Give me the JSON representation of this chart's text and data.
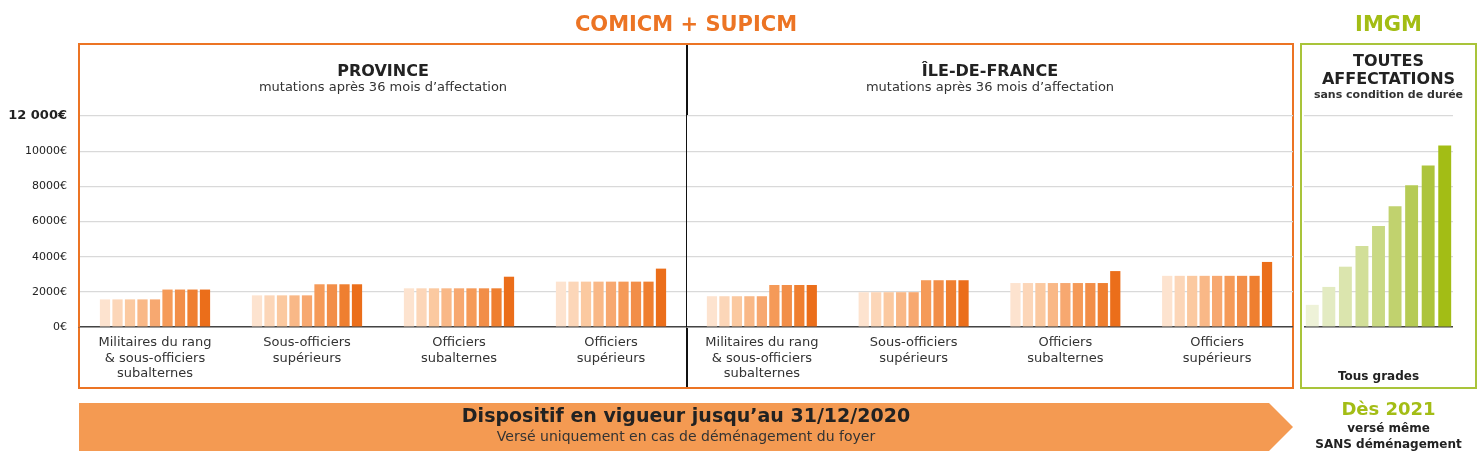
{
  "chart_data": [
    {
      "type": "bar",
      "title": "PROVINCE",
      "subtitle": "mutations après 36 mois d’affectation",
      "categories": [
        "Militaires du rang & sous-officiers subalternes",
        "Sous-officiers supérieurs",
        "Officiers subalternes",
        "Officiers supérieurs"
      ],
      "series": [
        {
          "color": "#fde3cf",
          "values": [
            1570,
            1800,
            2200,
            2580
          ]
        },
        {
          "color": "#fcd6b8",
          "values": [
            1570,
            1800,
            2200,
            2580
          ]
        },
        {
          "color": "#fbc9a0",
          "values": [
            1570,
            1800,
            2200,
            2580
          ]
        },
        {
          "color": "#f9b887",
          "values": [
            1570,
            1800,
            2200,
            2580
          ]
        },
        {
          "color": "#f7a870",
          "values": [
            1570,
            1800,
            2200,
            2580
          ]
        },
        {
          "color": "#f59a58",
          "values": [
            2130,
            2430,
            2200,
            2580
          ]
        },
        {
          "color": "#f28e48",
          "values": [
            2130,
            2430,
            2200,
            2580
          ]
        },
        {
          "color": "#ef7f30",
          "values": [
            2130,
            2430,
            2200,
            2580
          ]
        },
        {
          "color": "#eb6e1a",
          "values": [
            2130,
            2430,
            2860,
            3320
          ]
        }
      ],
      "ylim": [
        0,
        12000
      ],
      "yticks": [
        {
          "value": 0,
          "label": "0€"
        },
        {
          "value": 2000,
          "label": "2000€"
        },
        {
          "value": 4000,
          "label": "4000€"
        },
        {
          "value": 6000,
          "label": "6000€"
        },
        {
          "value": 8000,
          "label": "8000€"
        },
        {
          "value": 10000,
          "label": "10000€"
        },
        {
          "value": 12000,
          "label": "12 000€"
        }
      ],
      "grid": "y",
      "annotations": [
        "COMICM + SUPICM",
        "Dispositif en vigueur jusqu’au 31/12/2020",
        "Versé uniquement en cas de déménagement du foyer"
      ]
    },
    {
      "type": "bar",
      "title": "ÎLE-DE-FRANCE",
      "subtitle": "mutations après 36 mois d’affectation",
      "categories": [
        "Militaires du rang & sous-officiers subalternes",
        "Sous-officiers supérieurs",
        "Officiers subalternes",
        "Officiers supérieurs"
      ],
      "series": [
        {
          "color": "#fde3cf",
          "values": [
            1750,
            1980,
            2500,
            2910
          ]
        },
        {
          "color": "#fcd6b8",
          "values": [
            1750,
            1980,
            2500,
            2910
          ]
        },
        {
          "color": "#fbc9a0",
          "values": [
            1750,
            1980,
            2500,
            2910
          ]
        },
        {
          "color": "#f9b887",
          "values": [
            1750,
            1980,
            2500,
            2910
          ]
        },
        {
          "color": "#f7a870",
          "values": [
            1750,
            1980,
            2500,
            2910
          ]
        },
        {
          "color": "#f59a58",
          "values": [
            2390,
            2660,
            2500,
            2910
          ]
        },
        {
          "color": "#f28e48",
          "values": [
            2390,
            2660,
            2500,
            2910
          ]
        },
        {
          "color": "#ef7f30",
          "values": [
            2390,
            2660,
            2500,
            2910
          ]
        },
        {
          "color": "#eb6e1a",
          "values": [
            2390,
            2660,
            3180,
            3700
          ]
        }
      ],
      "ylim": [
        0,
        12000
      ],
      "yticks": [
        0,
        2000,
        4000,
        6000,
        8000,
        10000,
        12000
      ],
      "grid": "y",
      "tick_labels": "x"
    },
    {
      "type": "bar",
      "title": "TOUTES AFFECTATIONS",
      "subtitle": "sans condition de durée",
      "xlabel": "Tous grades",
      "categories": [
        null,
        null,
        null,
        null,
        null,
        null,
        null,
        null,
        null
      ],
      "values": [
        1260,
        2280,
        3430,
        4600,
        5740,
        6870,
        8060,
        9190,
        10320
      ],
      "colors": [
        "#eef2d8",
        "#e3ebc2",
        "#dbe5ae",
        "#d2df99",
        "#c9d984",
        "#c1d26e",
        "#b6cb55",
        "#adc43c",
        "#a3bd15"
      ],
      "ylim": [
        0,
        12000
      ],
      "yticks": [
        0,
        2000,
        4000,
        6000,
        8000,
        10000,
        12000
      ],
      "grid": "y",
      "tick_labels": "x",
      "annotations": [
        "IMGM",
        "Dès 2021",
        "versé même",
        "SANS déménagement"
      ]
    }
  ]
}
